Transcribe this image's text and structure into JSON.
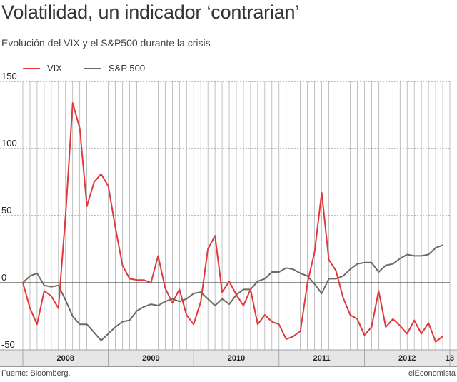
{
  "title": "Volatilidad, un indicador ‘contrarian’",
  "subtitle": "Evolución del VIX y el S&P500 durante la crisis",
  "source": "Fuente: Bloomberg.",
  "brand": "elEconomista",
  "colors": {
    "vix": "#e0393b",
    "sp500": "#6b6b60",
    "grid": "#9a9a9a",
    "axis": "#222222",
    "band": "#e6e6e6"
  },
  "chart_data": {
    "type": "line",
    "ylim": [
      -50,
      150
    ],
    "yticks": [
      -50,
      0,
      50,
      100,
      150
    ],
    "year_labels": [
      {
        "label": "2008",
        "month": 6
      },
      {
        "label": "2009",
        "month": 18
      },
      {
        "label": "2010",
        "month": 30
      },
      {
        "label": "2011",
        "month": 42
      },
      {
        "label": "2012",
        "month": 54
      },
      {
        "label": "13",
        "month": 61
      }
    ],
    "series": [
      {
        "name": "VIX",
        "color": "#e0393b",
        "values": [
          0,
          -19,
          -31,
          -6,
          -10,
          -19,
          50,
          134,
          115,
          57,
          75,
          81,
          72,
          41,
          13,
          3,
          2,
          2,
          0,
          20,
          -4,
          -15,
          -5,
          -24,
          -31,
          -14,
          25,
          35,
          -7,
          1,
          -9,
          -17,
          -5,
          -31,
          -24,
          -29,
          -31,
          -42,
          -40,
          -36,
          0,
          23,
          67,
          17,
          9,
          -11,
          -24,
          -27,
          -39,
          -33,
          -6,
          -33,
          -27,
          -32,
          -38,
          -28,
          -38,
          -30,
          -44,
          -40
        ],
        "note": "monthly points Jan 2008 - Dec 2012 (approx. % change)"
      },
      {
        "name": "S&P 500",
        "color": "#6b6b60",
        "values": [
          0,
          5,
          7,
          -2,
          -3,
          -2,
          -13,
          -25,
          -31,
          -31,
          -37,
          -43,
          -38,
          -33,
          -29,
          -28,
          -21,
          -18,
          -16,
          -17,
          -14,
          -12,
          -14,
          -12,
          -8,
          -7,
          -12,
          -17,
          -12,
          -16,
          -9,
          -5,
          -5,
          1,
          3,
          8,
          8,
          11,
          10,
          7,
          5,
          -1,
          -8,
          3,
          3,
          5,
          10,
          14,
          15,
          15,
          8,
          13,
          14,
          18,
          21,
          20,
          20,
          21,
          26,
          28
        ]
      }
    ]
  }
}
